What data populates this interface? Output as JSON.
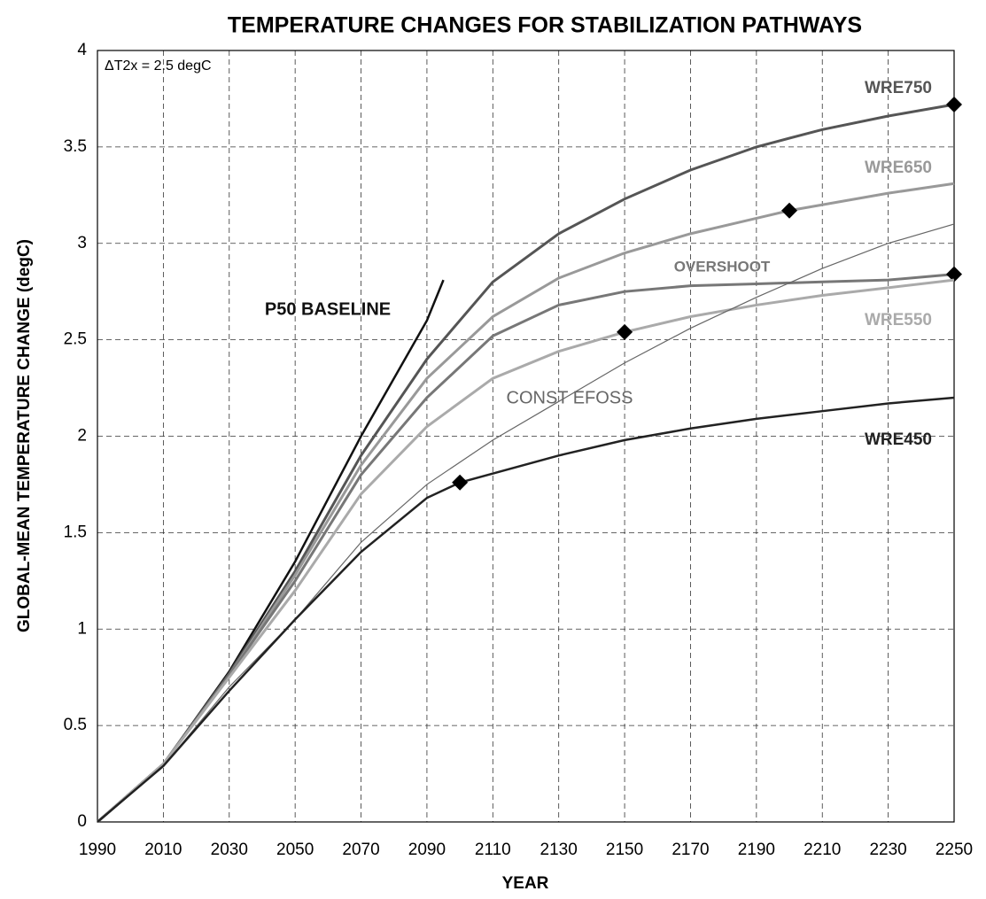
{
  "chart_data": {
    "type": "line",
    "title": "TEMPERATURE CHANGES FOR STABILIZATION PATHWAYS",
    "x_label": "YEAR",
    "y_label": "GLOBAL-MEAN TEMPERATURE CHANGE  (degC)",
    "annotation": "ΔT2x = 2.5 degC",
    "xlim": [
      1990,
      2250
    ],
    "ylim": [
      0,
      4
    ],
    "xticks": [
      1990,
      2010,
      2030,
      2050,
      2070,
      2090,
      2110,
      2130,
      2150,
      2170,
      2190,
      2210,
      2230,
      2250
    ],
    "yticks": [
      0,
      0.5,
      1,
      1.5,
      2,
      2.5,
      3,
      3.5,
      4
    ],
    "grid": true,
    "series": [
      {
        "name": "P50 BASELINE",
        "color": "#111111",
        "x": [
          1990,
          2010,
          2030,
          2050,
          2070,
          2090,
          2095
        ],
        "values": [
          0,
          0.3,
          0.78,
          1.35,
          2.0,
          2.6,
          2.81
        ]
      },
      {
        "name": "WRE750",
        "color": "#555555",
        "x": [
          1990,
          2010,
          2030,
          2050,
          2070,
          2090,
          2110,
          2130,
          2150,
          2170,
          2190,
          2210,
          2230,
          2250
        ],
        "values": [
          0,
          0.3,
          0.77,
          1.3,
          1.9,
          2.4,
          2.8,
          3.05,
          3.23,
          3.38,
          3.5,
          3.59,
          3.66,
          3.72
        ],
        "markers": [
          13
        ]
      },
      {
        "name": "WRE650",
        "color": "#999999",
        "x": [
          1990,
          2010,
          2030,
          2050,
          2070,
          2090,
          2110,
          2130,
          2150,
          2170,
          2190,
          2200,
          2230,
          2250
        ],
        "values": [
          0,
          0.3,
          0.76,
          1.28,
          1.85,
          2.3,
          2.62,
          2.82,
          2.95,
          3.05,
          3.13,
          3.17,
          3.26,
          3.31
        ],
        "markers": [
          11
        ]
      },
      {
        "name": "OVERSHOOT",
        "color": "#777777",
        "x": [
          1990,
          2010,
          2030,
          2050,
          2070,
          2090,
          2110,
          2130,
          2150,
          2170,
          2190,
          2210,
          2230,
          2250
        ],
        "values": [
          0,
          0.3,
          0.76,
          1.25,
          1.8,
          2.2,
          2.52,
          2.68,
          2.75,
          2.78,
          2.79,
          2.8,
          2.81,
          2.84
        ],
        "markers": [
          13
        ]
      },
      {
        "name": "WRE550",
        "color": "#aaaaaa",
        "x": [
          1990,
          2010,
          2030,
          2050,
          2070,
          2090,
          2110,
          2130,
          2150,
          2170,
          2190,
          2210,
          2230,
          2250
        ],
        "values": [
          0,
          0.3,
          0.75,
          1.2,
          1.7,
          2.05,
          2.3,
          2.44,
          2.54,
          2.62,
          2.68,
          2.73,
          2.77,
          2.81
        ],
        "markers": [
          8
        ]
      },
      {
        "name": "CONST EFOSS",
        "color": "#666666",
        "x": [
          1990,
          2010,
          2030,
          2050,
          2070,
          2090,
          2110,
          2130,
          2150,
          2170,
          2190,
          2210,
          2230,
          2250
        ],
        "values": [
          0,
          0.29,
          0.7,
          1.05,
          1.45,
          1.75,
          1.98,
          2.18,
          2.38,
          2.56,
          2.72,
          2.87,
          3.0,
          3.1
        ]
      },
      {
        "name": "WRE450",
        "color": "#222222",
        "x": [
          1990,
          2010,
          2030,
          2050,
          2070,
          2090,
          2100,
          2130,
          2150,
          2170,
          2190,
          2210,
          2230,
          2250
        ],
        "values": [
          0,
          0.29,
          0.68,
          1.05,
          1.4,
          1.68,
          1.76,
          1.9,
          1.98,
          2.04,
          2.09,
          2.13,
          2.17,
          2.2
        ],
        "markers": [
          6
        ]
      }
    ]
  }
}
